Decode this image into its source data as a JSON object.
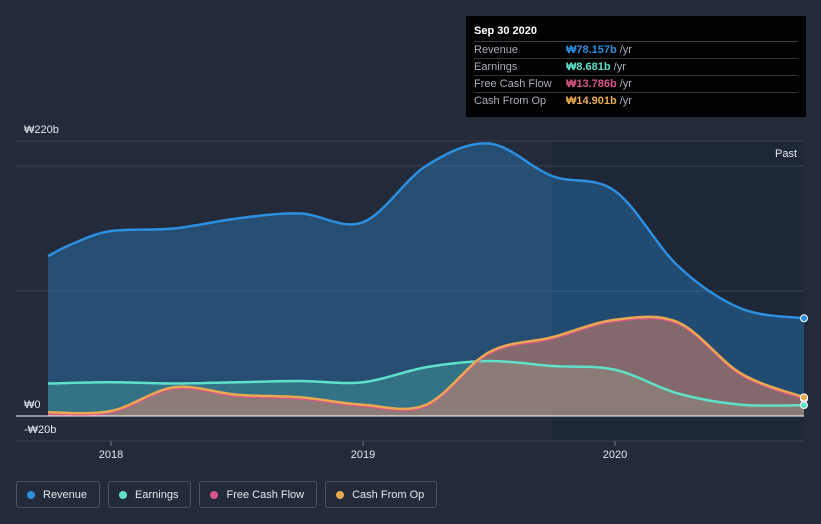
{
  "tooltip": {
    "date": "Sep 30 2020",
    "rows": [
      {
        "label": "Revenue",
        "value": "₩78.157b",
        "unit": "/yr",
        "color": "#2d8fe0"
      },
      {
        "label": "Earnings",
        "value": "₩8.681b",
        "unit": "/yr",
        "color": "#5fe0c9"
      },
      {
        "label": "Free Cash Flow",
        "value": "₩13.786b",
        "unit": "/yr",
        "color": "#d8558a"
      },
      {
        "label": "Cash From Op",
        "value": "₩14.901b",
        "unit": "/yr",
        "color": "#e8a950"
      }
    ]
  },
  "chart_data": {
    "type": "area",
    "title": "",
    "xlabel": "",
    "ylabel": "",
    "y_tick_labels": {
      "top": "₩220b",
      "zero": "₩0",
      "bottom": "-₩20b"
    },
    "ylim": [
      -20,
      220
    ],
    "xlim": [
      2017.75,
      2020.75
    ],
    "x_ticks": [
      {
        "value": 2018.0,
        "label": "2018"
      },
      {
        "value": 2019.0,
        "label": "2019"
      },
      {
        "value": 2020.0,
        "label": "2020"
      }
    ],
    "past_label": "Past",
    "past_from": 2019.75,
    "series": [
      {
        "name": "Revenue",
        "color": "#2d8fe0",
        "points": [
          [
            2017.75,
            128
          ],
          [
            2017.85,
            138
          ],
          [
            2018.0,
            148
          ],
          [
            2018.25,
            150
          ],
          [
            2018.5,
            158
          ],
          [
            2018.75,
            162
          ],
          [
            2019.0,
            155
          ],
          [
            2019.25,
            200
          ],
          [
            2019.5,
            218
          ],
          [
            2019.75,
            192
          ],
          [
            2020.0,
            180
          ],
          [
            2020.25,
            120
          ],
          [
            2020.5,
            86
          ],
          [
            2020.75,
            78.157
          ]
        ]
      },
      {
        "name": "Earnings",
        "color": "#5fe0c9",
        "points": [
          [
            2017.75,
            26
          ],
          [
            2018.0,
            27
          ],
          [
            2018.25,
            26
          ],
          [
            2018.5,
            27
          ],
          [
            2018.75,
            28
          ],
          [
            2019.0,
            27
          ],
          [
            2019.25,
            39
          ],
          [
            2019.5,
            44
          ],
          [
            2019.75,
            40
          ],
          [
            2020.0,
            37
          ],
          [
            2020.25,
            18
          ],
          [
            2020.5,
            9
          ],
          [
            2020.75,
            8.681
          ]
        ]
      },
      {
        "name": "Free Cash Flow",
        "color": "#d8558a",
        "points": [
          [
            2017.75,
            2
          ],
          [
            2018.0,
            3
          ],
          [
            2018.25,
            22
          ],
          [
            2018.5,
            16
          ],
          [
            2018.75,
            14
          ],
          [
            2019.0,
            8
          ],
          [
            2019.25,
            8
          ],
          [
            2019.5,
            50
          ],
          [
            2019.75,
            62
          ],
          [
            2020.0,
            76
          ],
          [
            2020.25,
            74
          ],
          [
            2020.5,
            33
          ],
          [
            2020.75,
            13.786
          ]
        ]
      },
      {
        "name": "Cash From Op",
        "color": "#e8a950",
        "points": [
          [
            2017.75,
            3
          ],
          [
            2018.0,
            4
          ],
          [
            2018.25,
            23
          ],
          [
            2018.5,
            17
          ],
          [
            2018.75,
            15
          ],
          [
            2019.0,
            9
          ],
          [
            2019.25,
            9
          ],
          [
            2019.5,
            51
          ],
          [
            2019.75,
            63
          ],
          [
            2020.0,
            77
          ],
          [
            2020.25,
            75
          ],
          [
            2020.5,
            34
          ],
          [
            2020.75,
            14.901
          ]
        ]
      }
    ]
  },
  "legend": [
    {
      "label": "Revenue",
      "color": "#2d8fe0"
    },
    {
      "label": "Earnings",
      "color": "#5fe0c9"
    },
    {
      "label": "Free Cash Flow",
      "color": "#d8558a"
    },
    {
      "label": "Cash From Op",
      "color": "#e8a950"
    }
  ]
}
